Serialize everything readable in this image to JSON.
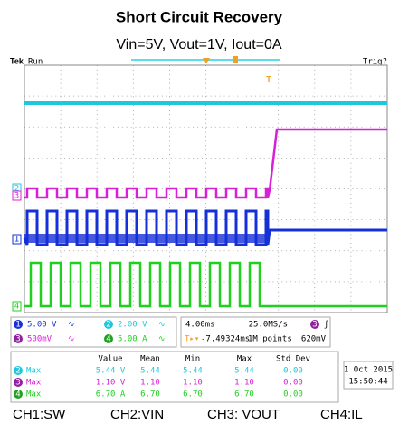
{
  "header": {
    "title": "Short Circuit Recovery",
    "subtitle": "Vin=5V, Vout=1V, Iout=0A"
  },
  "scope": {
    "brand": "Tek",
    "status": "Run",
    "trigger_status": "Trig?",
    "channels": [
      {
        "id": "1",
        "scale": "5.00 V"
      },
      {
        "id": "2",
        "scale": "2.00 V"
      },
      {
        "id": "3",
        "scale": "500mV"
      },
      {
        "id": "4",
        "scale": "5.00 A"
      }
    ],
    "timebase": {
      "scale": "4.00ms",
      "sample_rate": "25.0MS/s",
      "position": "-7.49324ms",
      "record": "1M points",
      "trigger_channel": "3",
      "trigger_level": "620mV"
    },
    "measurements": {
      "headers": [
        "Value",
        "Mean",
        "Min",
        "Max",
        "Std Dev"
      ],
      "rows": [
        {
          "channel": "2",
          "type": "Max",
          "value": "5.44 V",
          "mean": "5.44",
          "min": "5.44",
          "max": "5.44",
          "std_dev": "0.00"
        },
        {
          "channel": "3",
          "type": "Max",
          "value": "1.10 V",
          "mean": "1.10",
          "min": "1.10",
          "max": "1.10",
          "std_dev": "0.00"
        },
        {
          "channel": "4",
          "type": "Max",
          "value": "6.70 A",
          "mean": "6.70",
          "min": "6.70",
          "max": "6.70",
          "std_dev": "0.00"
        }
      ]
    },
    "date": "1 Oct 2015",
    "time": "15:50:44"
  },
  "footer": [
    "CH1:SW",
    "CH2:VIN",
    "CH3: VOUT",
    "CH4:IL"
  ]
}
